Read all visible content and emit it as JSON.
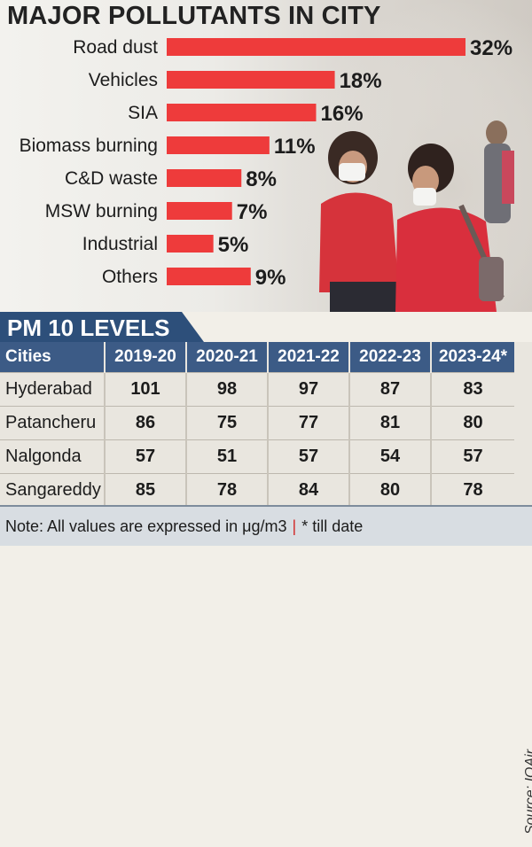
{
  "title": "MAJOR POLLUTANTS IN CITY",
  "colors": {
    "bar": "#ee3b3b",
    "table_header": "#3c5b86",
    "section_header": "#2d4f7a"
  },
  "chart_data": {
    "type": "bar",
    "orientation": "horizontal",
    "title": "MAJOR POLLUTANTS IN CITY",
    "categories": [
      "Road dust",
      "Vehicles",
      "SIA",
      "Biomass burning",
      "C&D waste",
      "MSW burning",
      "Industrial",
      "Others"
    ],
    "values": [
      32,
      18,
      16,
      11,
      8,
      7,
      5,
      9
    ],
    "value_labels": [
      "32%",
      "18%",
      "16%",
      "11%",
      "8%",
      "7%",
      "5%",
      "9%"
    ],
    "unit": "%",
    "grid": false
  },
  "pm10": {
    "title": "PM 10 LEVELS",
    "columns": [
      "Cities",
      "2019-20",
      "2020-21",
      "2021-22",
      "2022-23",
      "2023-24*"
    ],
    "rows": [
      [
        "Hyderabad",
        "101",
        "98",
        "97",
        "87",
        "83"
      ],
      [
        "Patancheru",
        "86",
        "75",
        "77",
        "81",
        "80"
      ],
      [
        "Nalgonda",
        "57",
        "51",
        "57",
        "54",
        "57"
      ],
      [
        "Sangareddy",
        "85",
        "78",
        "84",
        "80",
        "78"
      ]
    ],
    "source": "Source: IQAir"
  },
  "note": {
    "text": "Note: All values are expressed in μg/m3",
    "separator": "|",
    "suffix": "* till date"
  }
}
